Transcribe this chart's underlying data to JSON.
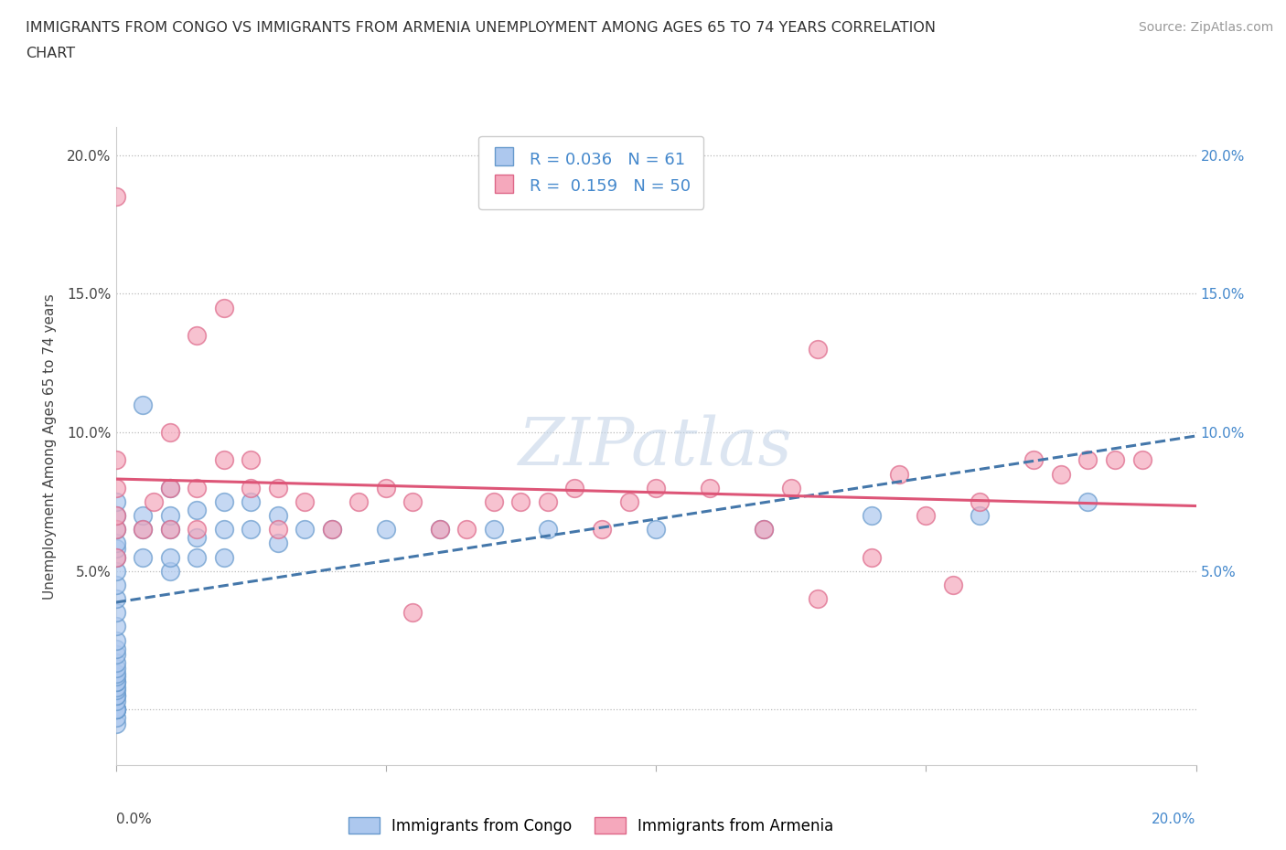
{
  "title_line1": "IMMIGRANTS FROM CONGO VS IMMIGRANTS FROM ARMENIA UNEMPLOYMENT AMONG AGES 65 TO 74 YEARS CORRELATION",
  "title_line2": "CHART",
  "source": "Source: ZipAtlas.com",
  "ylabel": "Unemployment Among Ages 65 to 74 years",
  "xlim": [
    0.0,
    0.2
  ],
  "ylim": [
    -0.02,
    0.21
  ],
  "xticks": [
    0.0,
    0.05,
    0.1,
    0.15,
    0.2
  ],
  "yticks": [
    0.0,
    0.05,
    0.1,
    0.15,
    0.2
  ],
  "xticklabels_bottom_left": "0.0%",
  "xticklabels_bottom_right": "20.0%",
  "yticklabels": [
    "",
    "5.0%",
    "10.0%",
    "15.0%",
    "20.0%"
  ],
  "right_yticklabels": [
    "",
    "5.0%",
    "10.0%",
    "15.0%",
    "20.0%"
  ],
  "congo_R": 0.036,
  "congo_N": 61,
  "armenia_R": 0.159,
  "armenia_N": 50,
  "congo_color": "#adc8ee",
  "armenia_color": "#f5a8bc",
  "congo_edge_color": "#6699cc",
  "armenia_edge_color": "#dd6688",
  "congo_line_color": "#4477aa",
  "armenia_line_color": "#dd5577",
  "watermark_color": "#c5d5e8",
  "legend_box_color": "#4488cc",
  "right_axis_color": "#4488cc",
  "congo_scatter_x": [
    0.0,
    0.0,
    0.0,
    0.0,
    0.0,
    0.0,
    0.0,
    0.0,
    0.0,
    0.0,
    0.0,
    0.0,
    0.0,
    0.0,
    0.0,
    0.0,
    0.0,
    0.0,
    0.0,
    0.0,
    0.0,
    0.0,
    0.0,
    0.0,
    0.0,
    0.0,
    0.0,
    0.0,
    0.0,
    0.0,
    0.0,
    0.005,
    0.005,
    0.005,
    0.005,
    0.01,
    0.01,
    0.01,
    0.01,
    0.01,
    0.015,
    0.015,
    0.015,
    0.02,
    0.02,
    0.02,
    0.025,
    0.025,
    0.03,
    0.03,
    0.035,
    0.04,
    0.05,
    0.06,
    0.07,
    0.08,
    0.1,
    0.12,
    0.14,
    0.16,
    0.18
  ],
  "congo_scatter_y": [
    -0.005,
    -0.003,
    0.0,
    0.0,
    0.0,
    0.0,
    0.003,
    0.005,
    0.005,
    0.007,
    0.008,
    0.01,
    0.01,
    0.012,
    0.013,
    0.015,
    0.017,
    0.02,
    0.022,
    0.025,
    0.03,
    0.035,
    0.04,
    0.045,
    0.05,
    0.055,
    0.058,
    0.06,
    0.065,
    0.07,
    0.075,
    0.055,
    0.065,
    0.07,
    0.11,
    0.05,
    0.055,
    0.065,
    0.07,
    0.08,
    0.055,
    0.062,
    0.072,
    0.055,
    0.065,
    0.075,
    0.065,
    0.075,
    0.06,
    0.07,
    0.065,
    0.065,
    0.065,
    0.065,
    0.065,
    0.065,
    0.065,
    0.065,
    0.07,
    0.07,
    0.075
  ],
  "armenia_scatter_x": [
    0.0,
    0.0,
    0.0,
    0.0,
    0.0,
    0.005,
    0.007,
    0.01,
    0.01,
    0.015,
    0.015,
    0.02,
    0.025,
    0.03,
    0.035,
    0.04,
    0.045,
    0.05,
    0.055,
    0.06,
    0.065,
    0.07,
    0.075,
    0.08,
    0.085,
    0.09,
    0.095,
    0.1,
    0.11,
    0.12,
    0.125,
    0.13,
    0.14,
    0.145,
    0.15,
    0.16,
    0.17,
    0.175,
    0.18,
    0.185,
    0.19,
    0.0,
    0.01,
    0.015,
    0.02,
    0.025,
    0.03,
    0.055,
    0.13,
    0.155
  ],
  "armenia_scatter_y": [
    0.055,
    0.065,
    0.07,
    0.08,
    0.09,
    0.065,
    0.075,
    0.065,
    0.08,
    0.065,
    0.135,
    0.09,
    0.08,
    0.08,
    0.075,
    0.065,
    0.075,
    0.08,
    0.075,
    0.065,
    0.065,
    0.075,
    0.075,
    0.075,
    0.08,
    0.065,
    0.075,
    0.08,
    0.08,
    0.065,
    0.08,
    0.04,
    0.055,
    0.085,
    0.07,
    0.075,
    0.09,
    0.085,
    0.09,
    0.09,
    0.09,
    0.185,
    0.1,
    0.08,
    0.145,
    0.09,
    0.065,
    0.035,
    0.13,
    0.045
  ]
}
